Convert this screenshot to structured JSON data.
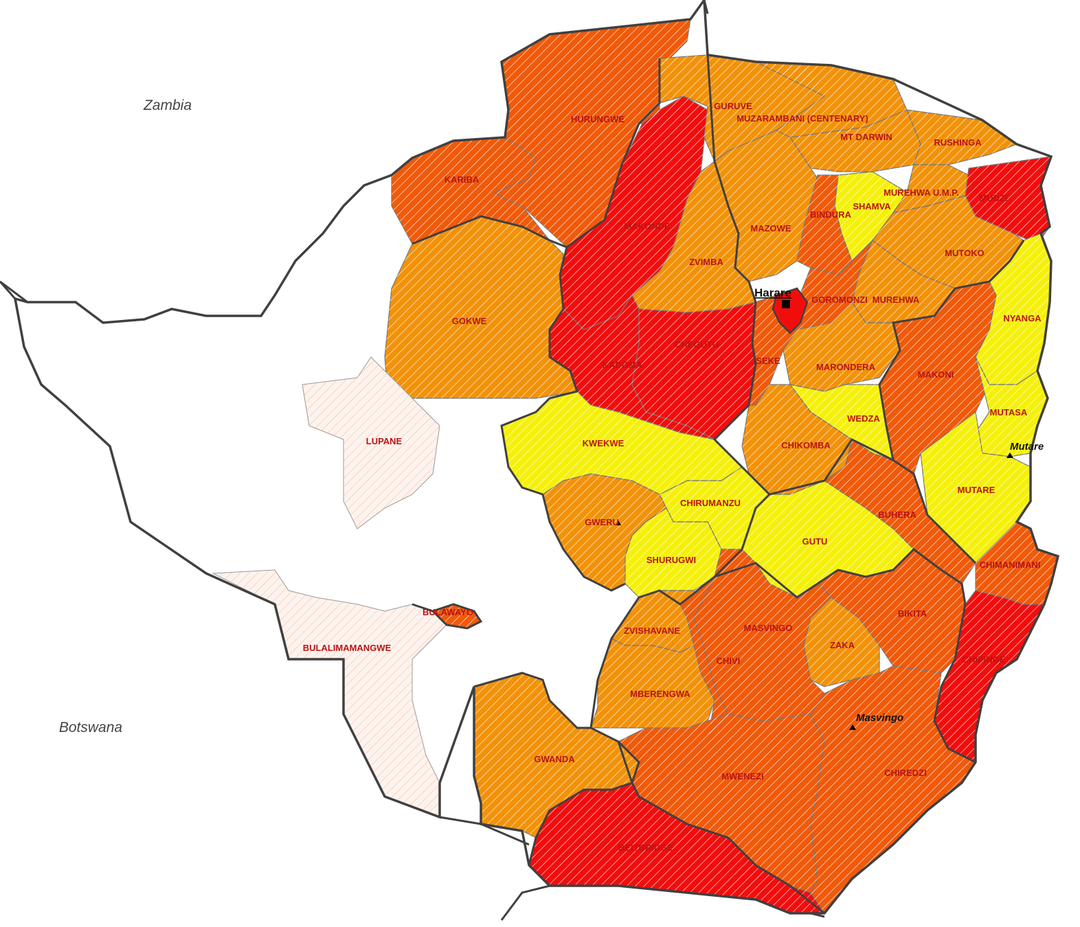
{
  "colors": {
    "red": "#f20d0d",
    "dark_orange": "#f05a0a",
    "orange": "#f2920a",
    "yellow": "#f5f00a",
    "none": "#fdf3ee",
    "hatch": "#ffffff",
    "border": "#404040"
  },
  "countries": [
    "Zambia",
    "Botswana"
  ],
  "capital": "Harare",
  "cities": [
    "Mutare",
    "Masvingo"
  ],
  "districts": [
    {
      "name": "HURUNGWE",
      "category": "dark_orange"
    },
    {
      "name": "KARIBA",
      "category": "dark_orange"
    },
    {
      "name": "MAKONDE",
      "category": "red"
    },
    {
      "name": "GURUVE",
      "category": "orange"
    },
    {
      "name": "MUZARAMBANI (CENTENARY)",
      "category": "orange"
    },
    {
      "name": "MT DARWIN",
      "category": "orange"
    },
    {
      "name": "RUSHINGA",
      "category": "orange"
    },
    {
      "name": "SHAMVA",
      "category": "yellow"
    },
    {
      "name": "MUREHWA U.M.P.",
      "category": "orange"
    },
    {
      "name": "MUDZI",
      "category": "red"
    },
    {
      "name": "MAZOWE",
      "category": "orange"
    },
    {
      "name": "BINDURA",
      "category": "dark_orange"
    },
    {
      "name": "MUTOKO",
      "category": "orange"
    },
    {
      "name": "ZVIMBA",
      "category": "orange"
    },
    {
      "name": "GOKWE",
      "category": "orange"
    },
    {
      "name": "GOROMONZI",
      "category": "dark_orange"
    },
    {
      "name": "MUREHWA",
      "category": "orange"
    },
    {
      "name": "NYANGA",
      "category": "yellow"
    },
    {
      "name": "CHEGUTU",
      "category": "red"
    },
    {
      "name": "KADOMA",
      "category": "red"
    },
    {
      "name": "SEKE",
      "category": "dark_orange"
    },
    {
      "name": "MARONDERA",
      "category": "orange"
    },
    {
      "name": "MAKONI",
      "category": "dark_orange"
    },
    {
      "name": "MUTASA",
      "category": "yellow"
    },
    {
      "name": "WEDZA",
      "category": "yellow"
    },
    {
      "name": "LUPANE",
      "category": "none"
    },
    {
      "name": "KWEKWE",
      "category": "yellow"
    },
    {
      "name": "CHIKOMBA",
      "category": "orange"
    },
    {
      "name": "MUTARE",
      "category": "yellow"
    },
    {
      "name": "CHIRUMANZU",
      "category": "yellow"
    },
    {
      "name": "GWERU",
      "category": "orange"
    },
    {
      "name": "BUHERA",
      "category": "dark_orange"
    },
    {
      "name": "GUTU",
      "category": "yellow"
    },
    {
      "name": "SHURUGWI",
      "category": "yellow"
    },
    {
      "name": "CHIMANIMANI",
      "category": "dark_orange"
    },
    {
      "name": "BULAWAYO",
      "category": "dark_orange"
    },
    {
      "name": "BIKITA",
      "category": "dark_orange"
    },
    {
      "name": "MASVINGO",
      "category": "dark_orange"
    },
    {
      "name": "BULALIMAMANGWE",
      "category": "none"
    },
    {
      "name": "ZVISHAVANE",
      "category": "orange"
    },
    {
      "name": "ZAKA",
      "category": "orange"
    },
    {
      "name": "CHIVI",
      "category": "dark_orange"
    },
    {
      "name": "CHIPINGE",
      "category": "red"
    },
    {
      "name": "MBERENGWA",
      "category": "orange"
    },
    {
      "name": "GWANDA",
      "category": "orange"
    },
    {
      "name": "MWENEZI",
      "category": "dark_orange"
    },
    {
      "name": "CHIREDZI",
      "category": "dark_orange"
    },
    {
      "name": "BEITBRIDGE",
      "category": "red"
    }
  ]
}
